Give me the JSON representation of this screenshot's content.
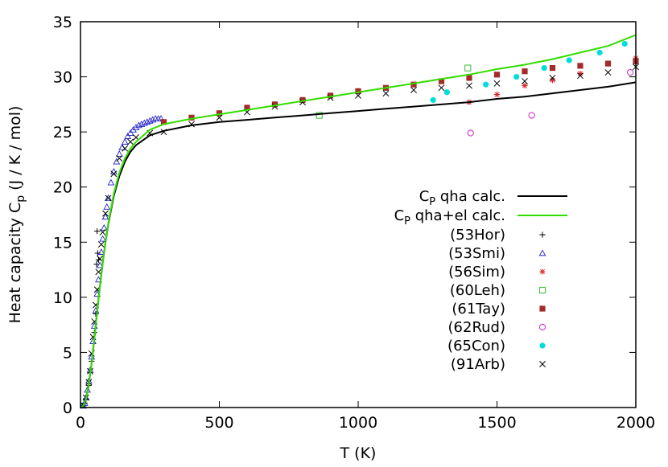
{
  "chart_data": {
    "type": "scatter",
    "xlabel": "T (K)",
    "ylabel_main": "Heat capacity C",
    "ylabel_sub": "p",
    "ylabel_units": " (J / K / mol)",
    "xlim": [
      0,
      2000
    ],
    "ylim": [
      0,
      35
    ],
    "xticks": [
      0,
      500,
      1000,
      1500,
      2000
    ],
    "yticks": [
      0,
      5,
      10,
      15,
      20,
      25,
      30,
      35
    ],
    "grid": false,
    "legend_position": "right-center",
    "lines": [
      {
        "label_main": "C",
        "label_sub": "P",
        "label_rest": " qha calc.",
        "color": "#000000",
        "points": [
          [
            0,
            0
          ],
          [
            10,
            0.15
          ],
          [
            20,
            0.8
          ],
          [
            30,
            2.1
          ],
          [
            40,
            4.0
          ],
          [
            50,
            6.3
          ],
          [
            60,
            8.7
          ],
          [
            70,
            11.0
          ],
          [
            80,
            13.1
          ],
          [
            90,
            15.0
          ],
          [
            100,
            16.6
          ],
          [
            120,
            19.2
          ],
          [
            140,
            21.0
          ],
          [
            160,
            22.3
          ],
          [
            180,
            23.2
          ],
          [
            200,
            23.8
          ],
          [
            250,
            24.7
          ],
          [
            300,
            25.1
          ],
          [
            400,
            25.6
          ],
          [
            500,
            25.9
          ],
          [
            600,
            26.1
          ],
          [
            700,
            26.3
          ],
          [
            800,
            26.5
          ],
          [
            900,
            26.7
          ],
          [
            1000,
            26.9
          ],
          [
            1100,
            27.1
          ],
          [
            1200,
            27.3
          ],
          [
            1300,
            27.5
          ],
          [
            1400,
            27.7
          ],
          [
            1500,
            28.0
          ],
          [
            1600,
            28.2
          ],
          [
            1700,
            28.5
          ],
          [
            1800,
            28.8
          ],
          [
            1900,
            29.1
          ],
          [
            2000,
            29.5
          ]
        ]
      },
      {
        "label_main": "C",
        "label_sub": "P",
        "label_rest": " qha+el calc.",
        "color": "#33dd00",
        "points": [
          [
            0,
            0
          ],
          [
            10,
            0.15
          ],
          [
            20,
            0.8
          ],
          [
            30,
            2.1
          ],
          [
            40,
            4.0
          ],
          [
            50,
            6.3
          ],
          [
            60,
            8.7
          ],
          [
            70,
            11.0
          ],
          [
            80,
            13.1
          ],
          [
            90,
            15.0
          ],
          [
            100,
            16.7
          ],
          [
            120,
            19.4
          ],
          [
            140,
            21.3
          ],
          [
            160,
            22.6
          ],
          [
            180,
            23.5
          ],
          [
            200,
            24.1
          ],
          [
            250,
            25.2
          ],
          [
            300,
            25.7
          ],
          [
            400,
            26.2
          ],
          [
            500,
            26.6
          ],
          [
            600,
            27.0
          ],
          [
            700,
            27.4
          ],
          [
            800,
            27.8
          ],
          [
            900,
            28.2
          ],
          [
            1000,
            28.6
          ],
          [
            1100,
            29.0
          ],
          [
            1200,
            29.4
          ],
          [
            1300,
            29.8
          ],
          [
            1400,
            30.2
          ],
          [
            1500,
            30.7
          ],
          [
            1600,
            31.1
          ],
          [
            1700,
            31.6
          ],
          [
            1800,
            32.2
          ],
          [
            1900,
            32.8
          ],
          [
            2000,
            33.8
          ]
        ]
      }
    ],
    "series": [
      {
        "name": "(53Hor)",
        "marker": "plus",
        "color": "#000000",
        "points": [
          [
            10,
            0.2
          ],
          [
            15,
            0.4
          ],
          [
            20,
            0.8
          ],
          [
            30,
            2.0
          ],
          [
            40,
            4.2
          ],
          [
            50,
            6.8
          ],
          [
            55,
            8.5
          ],
          [
            58,
            13.0
          ],
          [
            60,
            16.0
          ],
          [
            62,
            14.0
          ],
          [
            65,
            13.4
          ]
        ]
      },
      {
        "name": "(53Smi)",
        "marker": "triangle",
        "color": "#2222cc",
        "points": [
          [
            10,
            0.15
          ],
          [
            15,
            0.4
          ],
          [
            20,
            0.9
          ],
          [
            25,
            1.6
          ],
          [
            30,
            2.4
          ],
          [
            35,
            3.4
          ],
          [
            40,
            4.6
          ],
          [
            45,
            6.0
          ],
          [
            50,
            7.4
          ],
          [
            55,
            8.8
          ],
          [
            60,
            10.3
          ],
          [
            65,
            11.6
          ],
          [
            70,
            12.9
          ],
          [
            75,
            14.1
          ],
          [
            80,
            15.3
          ],
          [
            85,
            16.3
          ],
          [
            90,
            17.3
          ],
          [
            95,
            18.2
          ],
          [
            100,
            19.0
          ],
          [
            110,
            20.4
          ],
          [
            120,
            21.4
          ],
          [
            130,
            22.3
          ],
          [
            140,
            23.0
          ],
          [
            150,
            23.6
          ],
          [
            160,
            24.1
          ],
          [
            170,
            24.6
          ],
          [
            180,
            24.9
          ],
          [
            190,
            25.2
          ],
          [
            200,
            25.4
          ],
          [
            210,
            25.6
          ],
          [
            220,
            25.7
          ],
          [
            230,
            25.8
          ],
          [
            240,
            25.9
          ],
          [
            250,
            26.0
          ],
          [
            260,
            26.1
          ],
          [
            270,
            26.2
          ],
          [
            280,
            26.2
          ],
          [
            290,
            26.2
          ]
        ]
      },
      {
        "name": "(56Sim)",
        "marker": "asterisk",
        "color": "#dd2222",
        "points": [
          [
            1400,
            27.7
          ],
          [
            1500,
            28.4
          ],
          [
            1600,
            29.2
          ],
          [
            1700,
            29.7
          ],
          [
            1800,
            30.3
          ],
          [
            2000,
            31.7
          ]
        ]
      },
      {
        "name": "(60Leh)",
        "marker": "square-open",
        "color": "#33bb33",
        "points": [
          [
            860,
            26.5
          ],
          [
            1395,
            30.8
          ]
        ]
      },
      {
        "name": "(61Tay)",
        "marker": "square-filled",
        "color": "#a52a2a",
        "points": [
          [
            300,
            25.9
          ],
          [
            400,
            26.3
          ],
          [
            500,
            26.7
          ],
          [
            600,
            27.2
          ],
          [
            700,
            27.5
          ],
          [
            800,
            27.9
          ],
          [
            900,
            28.3
          ],
          [
            1000,
            28.7
          ],
          [
            1100,
            29.0
          ],
          [
            1200,
            29.3
          ],
          [
            1300,
            29.6
          ],
          [
            1400,
            29.9
          ],
          [
            1500,
            30.2
          ],
          [
            1600,
            30.5
          ],
          [
            1700,
            30.8
          ],
          [
            1800,
            31.0
          ],
          [
            1900,
            31.2
          ],
          [
            2000,
            31.4
          ]
        ]
      },
      {
        "name": "(62Rud)",
        "marker": "circle-open",
        "color": "#cc22cc",
        "points": [
          [
            1405,
            24.9
          ],
          [
            1625,
            26.5
          ],
          [
            1980,
            30.4
          ]
        ]
      },
      {
        "name": "(65Con)",
        "marker": "circle-filled",
        "color": "#00dddd",
        "points": [
          [
            1270,
            27.9
          ],
          [
            1320,
            28.6
          ],
          [
            1460,
            29.3
          ],
          [
            1570,
            30.0
          ],
          [
            1670,
            30.8
          ],
          [
            1760,
            31.5
          ],
          [
            1870,
            32.2
          ],
          [
            1960,
            33.0
          ]
        ]
      },
      {
        "name": "(91Arb)",
        "marker": "x",
        "color": "#000000",
        "points": [
          [
            10,
            0.2
          ],
          [
            20,
            0.9
          ],
          [
            30,
            2.3
          ],
          [
            35,
            3.3
          ],
          [
            40,
            4.9
          ],
          [
            45,
            6.4
          ],
          [
            50,
            7.8
          ],
          [
            55,
            9.3
          ],
          [
            60,
            10.7
          ],
          [
            65,
            12.3
          ],
          [
            70,
            13.5
          ],
          [
            75,
            14.8
          ],
          [
            80,
            15.9
          ],
          [
            90,
            17.6
          ],
          [
            100,
            19.0
          ],
          [
            120,
            21.2
          ],
          [
            140,
            22.6
          ],
          [
            160,
            23.5
          ],
          [
            180,
            24.1
          ],
          [
            200,
            24.5
          ],
          [
            250,
            24.9
          ],
          [
            300,
            25.0
          ],
          [
            400,
            25.7
          ],
          [
            500,
            26.3
          ],
          [
            600,
            26.8
          ],
          [
            700,
            27.3
          ],
          [
            800,
            27.7
          ],
          [
            900,
            28.1
          ],
          [
            1000,
            28.3
          ],
          [
            1100,
            28.5
          ],
          [
            1200,
            28.8
          ],
          [
            1300,
            29.0
          ],
          [
            1400,
            29.2
          ],
          [
            1500,
            29.4
          ],
          [
            1600,
            29.6
          ],
          [
            1700,
            29.9
          ],
          [
            1800,
            30.1
          ],
          [
            1900,
            30.4
          ],
          [
            2000,
            30.9
          ]
        ]
      }
    ]
  }
}
